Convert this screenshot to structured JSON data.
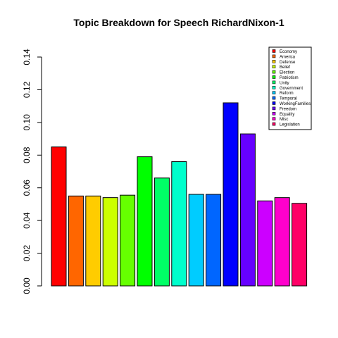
{
  "chart_data": {
    "type": "bar",
    "title": "Topic Breakdown for Speech RichardNixon-1",
    "xlabel": "",
    "ylabel": "",
    "ylim": [
      0,
      0.14
    ],
    "yticks": [
      "0.00",
      "0.02",
      "0.04",
      "0.06",
      "0.08",
      "0.10",
      "0.12",
      "0.14"
    ],
    "grid": false,
    "legend_position": "top-right",
    "categories": [
      "Economy",
      "America",
      "Defense",
      "Belief",
      "Election",
      "Patriotism",
      "Unity",
      "Government",
      "Reform",
      "Temporal",
      "WorkingFamilies",
      "Freedom",
      "Equality",
      "Misc",
      "Legislation"
    ],
    "values": [
      0.085,
      0.055,
      0.055,
      0.054,
      0.0555,
      0.079,
      0.066,
      0.076,
      0.056,
      0.056,
      0.112,
      0.093,
      0.052,
      0.054,
      0.0505
    ],
    "colors": [
      "#FF0000",
      "#FF6600",
      "#FFCC00",
      "#CCFF00",
      "#66FF00",
      "#00FF00",
      "#00FF66",
      "#00FFCC",
      "#00CCFF",
      "#0066FF",
      "#0000FF",
      "#6600FF",
      "#CC00FF",
      "#FF00CC",
      "#FF0066"
    ]
  }
}
